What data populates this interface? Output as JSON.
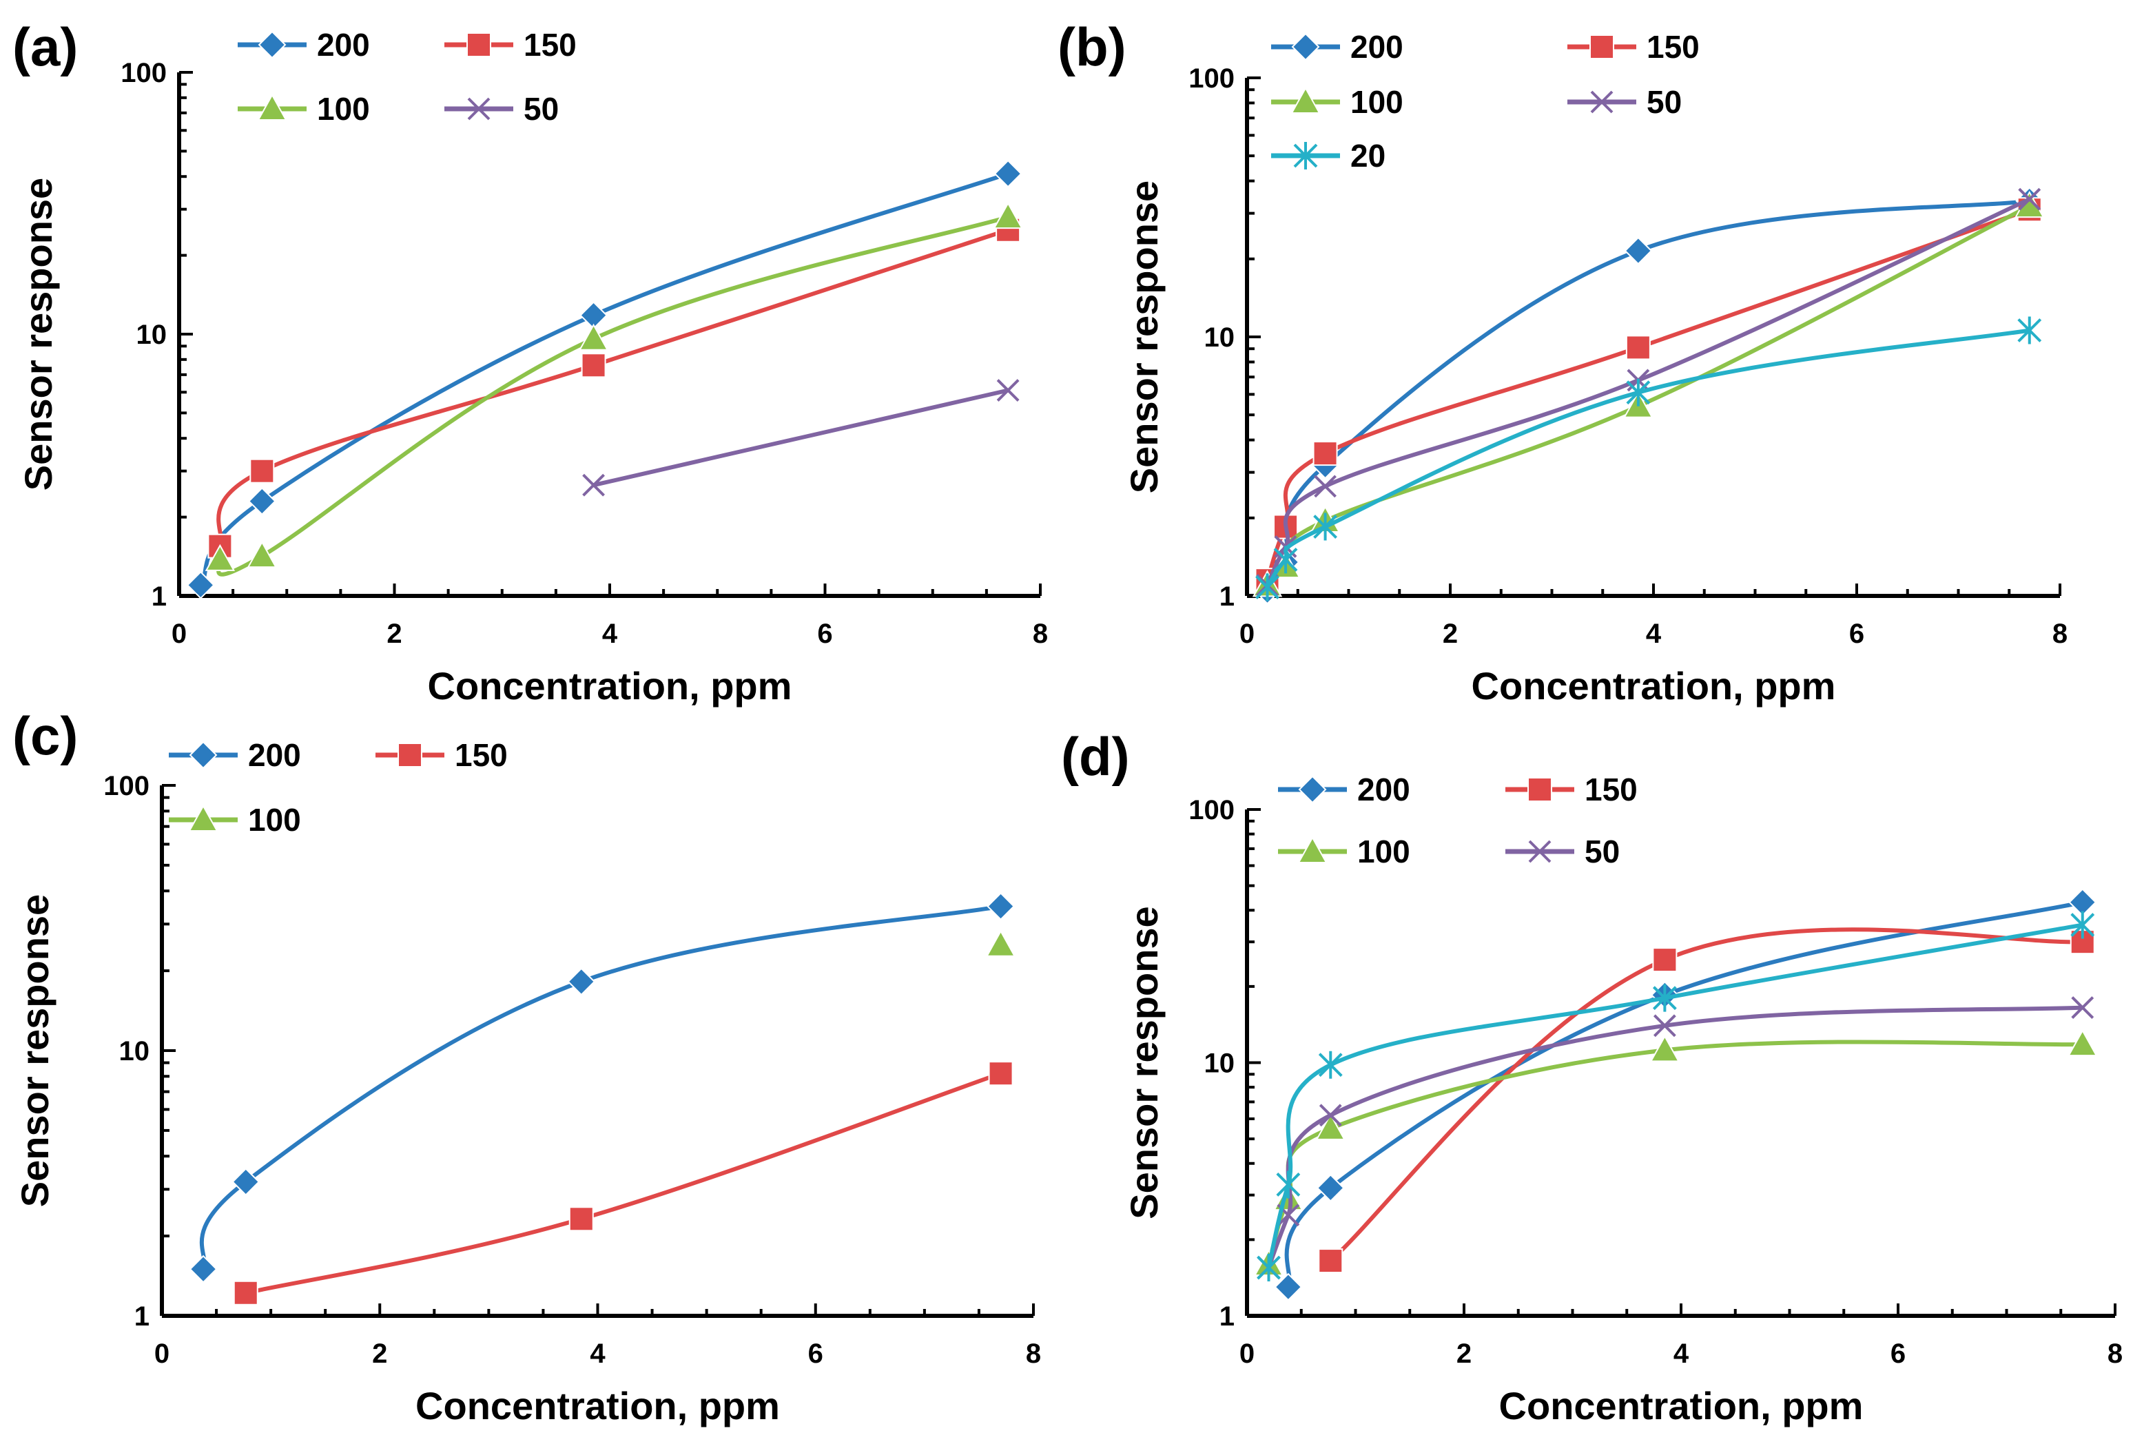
{
  "chart_data": [
    {
      "type": "line",
      "panel": "(a)",
      "xlabel": "Concentration, ppm",
      "ylabel": "Sensor response",
      "xlim": [
        0,
        8
      ],
      "ylim": [
        1,
        100
      ],
      "yscale": "log",
      "xticks": [
        "0",
        "2",
        "4",
        "6",
        "8"
      ],
      "yticks": [
        "1",
        "10",
        "100"
      ],
      "series": [
        {
          "name": "200",
          "color": "#2b7bbf",
          "marker": "diamond",
          "x": [
            0.2,
            0.77,
            3.85,
            7.7
          ],
          "y": [
            1.1,
            2.3,
            11.8,
            41
          ]
        },
        {
          "name": "150",
          "color": "#e04848",
          "marker": "square",
          "x": [
            0.38,
            0.77,
            3.85,
            7.7
          ],
          "y": [
            1.55,
            3.0,
            7.6,
            25
          ]
        },
        {
          "name": "100",
          "color": "#8dc24a",
          "marker": "triangle",
          "x": [
            0.38,
            0.77,
            3.85,
            7.7
          ],
          "y": [
            1.38,
            1.42,
            9.6,
            28
          ]
        },
        {
          "name": "50",
          "color": "#8064a2",
          "marker": "x",
          "x": [
            3.85,
            7.7
          ],
          "y": [
            2.65,
            6.1
          ]
        }
      ]
    },
    {
      "type": "line",
      "panel": "(b)",
      "xlabel": "Concentration, ppm",
      "ylabel": "Sensor response",
      "xlim": [
        0,
        8
      ],
      "ylim": [
        1,
        100
      ],
      "yscale": "log",
      "xticks": [
        "0",
        "2",
        "4",
        "6",
        "8"
      ],
      "yticks": [
        "1",
        "10",
        "100"
      ],
      "series": [
        {
          "name": "200",
          "color": "#2b7bbf",
          "marker": "diamond",
          "x": [
            0.2,
            0.38,
            0.77,
            3.85,
            7.7
          ],
          "y": [
            1.05,
            1.35,
            3.2,
            21.5,
            33.5
          ]
        },
        {
          "name": "150",
          "color": "#e04848",
          "marker": "square",
          "x": [
            0.2,
            0.38,
            0.77,
            3.85,
            7.7
          ],
          "y": [
            1.15,
            1.85,
            3.55,
            9.1,
            31
          ]
        },
        {
          "name": "100",
          "color": "#8dc24a",
          "marker": "triangle",
          "x": [
            0.2,
            0.38,
            0.77,
            3.85,
            7.7
          ],
          "y": [
            1.1,
            1.3,
            1.95,
            5.4,
            32
          ]
        },
        {
          "name": "50",
          "color": "#8064a2",
          "marker": "x",
          "x": [
            0.2,
            0.38,
            0.77,
            3.85,
            7.7
          ],
          "y": [
            1.1,
            1.55,
            2.65,
            6.8,
            34
          ]
        },
        {
          "name": "20",
          "color": "#25b0c8",
          "marker": "star",
          "x": [
            0.2,
            0.38,
            0.77,
            3.85,
            7.7
          ],
          "y": [
            1.08,
            1.38,
            1.85,
            6.1,
            10.6
          ]
        }
      ]
    },
    {
      "type": "line",
      "panel": "(c)",
      "xlabel": "Concentration, ppm",
      "ylabel": "Sensor response",
      "xlim": [
        0,
        8
      ],
      "ylim": [
        1,
        100
      ],
      "yscale": "log",
      "xticks": [
        "0",
        "2",
        "4",
        "6",
        "8"
      ],
      "yticks": [
        "1",
        "10",
        "100"
      ],
      "series": [
        {
          "name": "200",
          "color": "#2b7bbf",
          "marker": "diamond",
          "x": [
            0.38,
            0.77,
            3.85,
            7.7
          ],
          "y": [
            1.5,
            3.2,
            18.2,
            35
          ]
        },
        {
          "name": "150",
          "color": "#e04848",
          "marker": "square",
          "x": [
            0.77,
            3.85,
            7.7
          ],
          "y": [
            1.22,
            2.32,
            8.2
          ]
        },
        {
          "name": "100",
          "color": "#8dc24a",
          "marker": "triangle",
          "x": [
            7.7
          ],
          "y": [
            25
          ]
        }
      ]
    },
    {
      "type": "line",
      "panel": "(d)",
      "xlabel": "Concentration, ppm",
      "ylabel": "Sensor response",
      "xlim": [
        0,
        8
      ],
      "ylim": [
        1,
        100
      ],
      "yscale": "log",
      "xticks": [
        "0",
        "2",
        "4",
        "6",
        "8"
      ],
      "yticks": [
        "1",
        "10",
        "100"
      ],
      "series": [
        {
          "name": "200",
          "color": "#2b7bbf",
          "marker": "diamond",
          "x": [
            0.38,
            0.77,
            3.85,
            7.7
          ],
          "y": [
            1.3,
            3.2,
            18.5,
            43
          ]
        },
        {
          "name": "150",
          "color": "#e04848",
          "marker": "square",
          "x": [
            0.77,
            3.85,
            7.7
          ],
          "y": [
            1.65,
            25.5,
            30
          ]
        },
        {
          "name": "100",
          "color": "#8dc24a",
          "marker": "triangle",
          "x": [
            0.2,
            0.38,
            0.77,
            3.85,
            7.7
          ],
          "y": [
            1.6,
            2.9,
            5.5,
            11.2,
            11.8
          ]
        },
        {
          "name": "50",
          "color": "#8064a2",
          "marker": "x",
          "x": [
            0.2,
            0.38,
            0.77,
            3.85,
            7.7
          ],
          "y": [
            1.55,
            2.5,
            6.2,
            14,
            16.5
          ]
        },
        {
          "name": "",
          "color": "#25b0c8",
          "marker": "star",
          "x": [
            0.2,
            0.38,
            0.77,
            3.85,
            7.7
          ],
          "y": [
            1.55,
            3.3,
            9.8,
            18,
            35
          ]
        }
      ]
    }
  ]
}
